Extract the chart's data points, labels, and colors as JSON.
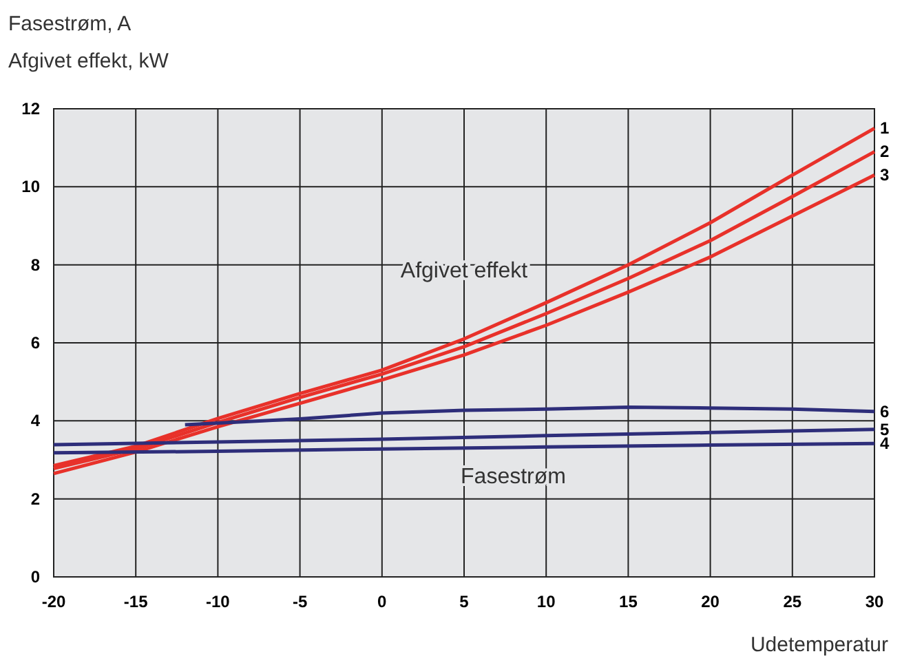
{
  "chart_data": {
    "type": "line",
    "ylabel": "Fasestrøm, A\nAfgivet effekt, kW",
    "xlabel": "Udetemperatur",
    "xlim": [
      -20,
      30
    ],
    "xticks": [
      -20,
      -15,
      -10,
      -5,
      0,
      5,
      10,
      15,
      20,
      25,
      30
    ],
    "ylim": [
      0,
      12
    ],
    "yticks": [
      0,
      2,
      4,
      6,
      8,
      10,
      12
    ],
    "grid": true,
    "legend": false,
    "marker": "none",
    "line_style": "solid",
    "annotations": [
      "Afgivet effekt",
      "Fasestrøm"
    ],
    "series": [
      {
        "name": "1",
        "color": "#e8312a",
        "x": [
          -20,
          -15,
          -10,
          -5,
          0,
          5,
          10,
          15,
          20,
          25,
          30
        ],
        "values": [
          2.85,
          3.35,
          4.06,
          4.7,
          5.3,
          6.1,
          7.03,
          8.0,
          9.08,
          10.3,
          11.5
        ]
      },
      {
        "name": "2",
        "color": "#e8312a",
        "x": [
          -20,
          -15,
          -10,
          -5,
          0,
          5,
          10,
          15,
          20,
          25,
          30
        ],
        "values": [
          2.78,
          3.28,
          3.96,
          4.6,
          5.2,
          5.9,
          6.75,
          7.65,
          8.62,
          9.75,
          10.9
        ]
      },
      {
        "name": "3",
        "color": "#e8312a",
        "x": [
          -20,
          -15,
          -10,
          -5,
          0,
          5,
          10,
          15,
          20,
          25,
          30
        ],
        "values": [
          2.65,
          3.2,
          3.85,
          4.45,
          5.05,
          5.69,
          6.45,
          7.3,
          8.2,
          9.25,
          10.3
        ]
      },
      {
        "name": "4",
        "color": "#2e2e7a",
        "x": [
          -20,
          -10,
          0,
          10,
          20,
          30
        ],
        "values": [
          3.18,
          3.22,
          3.28,
          3.33,
          3.38,
          3.42
        ]
      },
      {
        "name": "5",
        "color": "#2e2e7a",
        "x": [
          -20,
          -10,
          0,
          10,
          20,
          30
        ],
        "values": [
          3.39,
          3.46,
          3.53,
          3.62,
          3.7,
          3.78
        ]
      },
      {
        "name": "6",
        "color": "#2e2e7a",
        "x": [
          -12,
          -5,
          0,
          5,
          10,
          15,
          20,
          25,
          30
        ],
        "values": [
          3.9,
          4.05,
          4.2,
          4.27,
          4.3,
          4.35,
          4.33,
          4.3,
          4.24
        ]
      }
    ]
  }
}
